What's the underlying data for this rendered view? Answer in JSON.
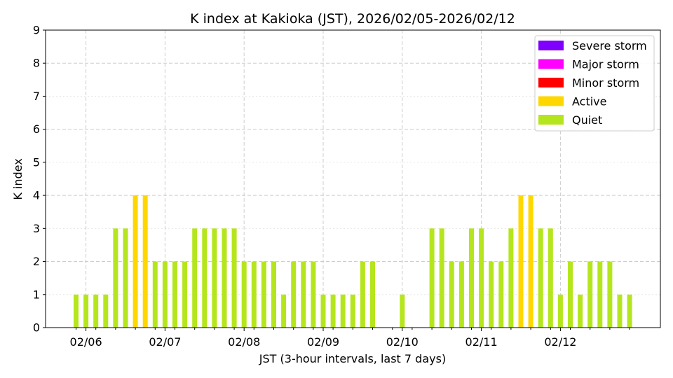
{
  "colors": {
    "severe_storm": "#7f00ff",
    "major_storm": "#ff00ff",
    "minor_storm": "#ff0000",
    "active": "#ffd700",
    "quiet": "#b5e61d",
    "grid_major": "#cccccc",
    "grid_minor": "#e6e6e6"
  },
  "chart_data": {
    "type": "bar",
    "title": "K index at Kakioka (JST), 2026/02/05-2026/02/12",
    "xlabel": "JST (3-hour intervals, last 7 days)",
    "ylabel": "K index",
    "ylim": [
      0,
      9
    ],
    "yticks": [
      0,
      1,
      2,
      3,
      4,
      5,
      6,
      7,
      8,
      9
    ],
    "xticks": [
      "02/06",
      "02/07",
      "02/08",
      "02/09",
      "02/10",
      "02/11",
      "02/12"
    ],
    "interval_hours": 3,
    "grid": true,
    "legend_position": "top-right",
    "legend": [
      {
        "label": "Severe storm",
        "color_key": "severe_storm"
      },
      {
        "label": "Major storm",
        "color_key": "major_storm"
      },
      {
        "label": "Minor storm",
        "color_key": "minor_storm"
      },
      {
        "label": "Active",
        "color_key": "active"
      },
      {
        "label": "Quiet",
        "color_key": "quiet"
      }
    ],
    "values": [
      1,
      1,
      1,
      1,
      3,
      3,
      4,
      4,
      2,
      2,
      2,
      2,
      3,
      3,
      3,
      3,
      3,
      2,
      2,
      2,
      2,
      1,
      2,
      2,
      2,
      1,
      1,
      1,
      1,
      2,
      2,
      0,
      0,
      1,
      0,
      0,
      3,
      3,
      2,
      2,
      3,
      3,
      2,
      2,
      3,
      4,
      4,
      3,
      3,
      1,
      2,
      1,
      2,
      2,
      2,
      1,
      1
    ]
  }
}
